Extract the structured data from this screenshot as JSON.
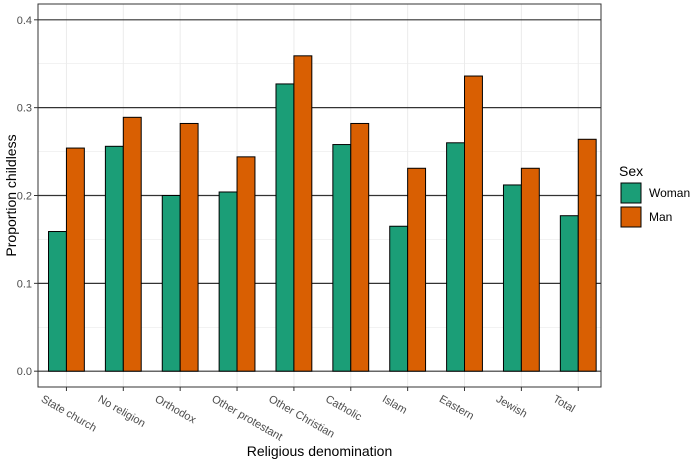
{
  "chart_data": {
    "type": "bar",
    "title": "",
    "xlabel": "Religious denomination",
    "ylabel": "Proportion childless",
    "ylim": [
      0,
      0.4
    ],
    "yticks": [
      "0.0",
      "0.1",
      "0.2",
      "0.3",
      "0.4"
    ],
    "grid": true,
    "legend": {
      "title": "Sex",
      "placement": "right"
    },
    "categories": [
      "State church",
      "No religion",
      "Orthodox",
      "Other protestant",
      "Other Christian",
      "Catholic",
      "Islam",
      "Eastern",
      "Jewish",
      "Total"
    ],
    "series": [
      {
        "name": "Woman",
        "color": "#1b9e77",
        "values": [
          0.159,
          0.256,
          0.2,
          0.204,
          0.327,
          0.258,
          0.165,
          0.26,
          0.212,
          0.177
        ]
      },
      {
        "name": "Man",
        "color": "#d95f02",
        "values": [
          0.254,
          0.289,
          0.282,
          0.244,
          0.359,
          0.282,
          0.231,
          0.336,
          0.231,
          0.264
        ]
      }
    ]
  }
}
